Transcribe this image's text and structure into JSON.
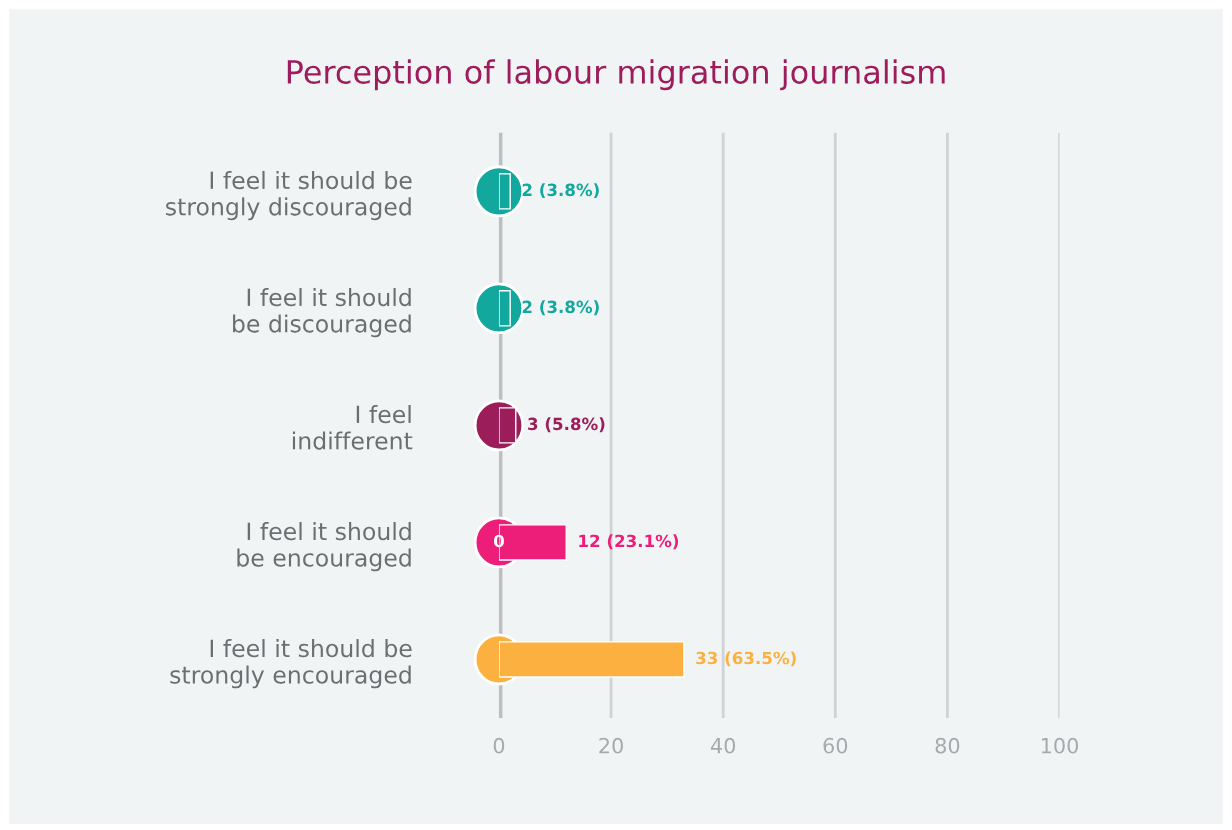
{
  "chart_data": {
    "type": "bar",
    "orientation": "horizontal",
    "title": "Perception of labour migration journalism",
    "categories": [
      "I feel it should be\nstrongly discouraged",
      "I feel it should\nbe discouraged",
      "I feel\nindifferent",
      "I feel it should\nbe encouraged",
      "I feel it should be\nstrongly encouraged"
    ],
    "values": [
      2,
      2,
      3,
      12,
      33
    ],
    "colors": [
      "#13a89e",
      "#13a89e",
      "#9b1d5a",
      "#ed1e79",
      "#fbb040"
    ],
    "value_labels": [
      "2 (3.8%)",
      "2 (3.8%)",
      "3 (5.8%)",
      "12 (23.1%)",
      "33 (63.5%)"
    ],
    "annotations": [
      {
        "text": "0",
        "x": 0,
        "y": "I feel it should\nbe encouraged"
      }
    ],
    "xlim": [
      0,
      100
    ],
    "xticks": [
      0,
      20,
      40,
      60,
      80,
      100
    ],
    "grid": "x",
    "legend": false
  }
}
